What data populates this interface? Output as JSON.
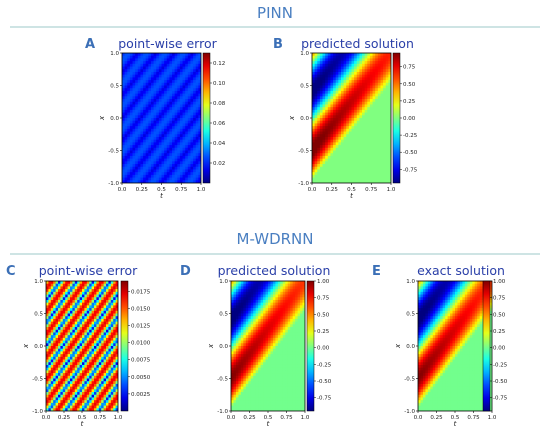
{
  "sections": [
    {
      "title": "PINN",
      "color": "#4a7fc1"
    },
    {
      "title": "M-WDRNN",
      "color": "#4a7fc1"
    }
  ],
  "colors": {
    "header": "#4a7fc1",
    "rule": "#9cc9c9",
    "letter": "#3b6fb6",
    "title": "#2a3fa8"
  },
  "chart_data": [
    {
      "type": "heatmap",
      "letter": "A",
      "title": "point-wise error",
      "xlabel": "t",
      "ylabel": "x",
      "xlim": [
        0,
        1
      ],
      "ylim": [
        -1,
        1
      ],
      "xticks": [
        "0.0",
        "0.25",
        "0.5",
        "0.75",
        "1.0"
      ],
      "yticks": [
        "1.0",
        "0.5",
        "0.0",
        "-0.5",
        "-1.0"
      ],
      "field": "error",
      "clim": [
        0,
        0.13
      ],
      "cbticks": [
        "0.12",
        "0.10",
        "0.08",
        "0.06",
        "0.04",
        "0.02"
      ]
    },
    {
      "type": "heatmap",
      "letter": "B",
      "title": "predicted solution",
      "xlabel": "t",
      "ylabel": "x",
      "xlim": [
        0,
        1
      ],
      "ylim": [
        -1,
        1
      ],
      "xticks": [
        "0.0",
        "0.25",
        "0.5",
        "0.75",
        "1.0"
      ],
      "yticks": [
        "1.0",
        "0.5",
        "0.0",
        "-0.5",
        "-1.0"
      ],
      "field": "solution",
      "clim": [
        -0.95,
        0.95
      ],
      "cbticks": [
        "0.75",
        "0.50",
        "0.25",
        "0.00",
        "-0.25",
        "-0.50",
        "-0.75"
      ]
    },
    {
      "type": "heatmap",
      "letter": "C",
      "title": "point-wise error",
      "xlabel": "t",
      "ylabel": "x",
      "xlim": [
        0,
        1
      ],
      "ylim": [
        -1,
        1
      ],
      "xticks": [
        "0.0",
        "0.25",
        "0.5",
        "0.75",
        "1.0"
      ],
      "yticks": [
        "1.0",
        "0.5",
        "0.0",
        "-0.5",
        "-1.0"
      ],
      "field": "error",
      "clim": [
        0,
        0.019
      ],
      "cbticks": [
        "0.0175",
        "0.0150",
        "0.0125",
        "0.0100",
        "0.0075",
        "0.0050",
        "0.0025"
      ]
    },
    {
      "type": "heatmap",
      "letter": "D",
      "title": "predicted solution",
      "xlabel": "t",
      "ylabel": "x",
      "xlim": [
        0,
        1
      ],
      "ylim": [
        -1,
        1
      ],
      "xticks": [
        "0.0",
        "0.25",
        "0.5",
        "0.75",
        "1.0"
      ],
      "yticks": [
        "1.0",
        "0.5",
        "0.0",
        "-0.5",
        "-1.0"
      ],
      "field": "solution",
      "clim": [
        -0.95,
        1.0
      ],
      "cbticks": [
        "1.00",
        "0.75",
        "0.50",
        "0.25",
        "0.00",
        "-0.25",
        "-0.50",
        "-0.75"
      ]
    },
    {
      "type": "heatmap",
      "letter": "E",
      "title": "exact solution",
      "xlabel": "t",
      "ylabel": "x",
      "xlim": [
        0,
        1
      ],
      "ylim": [
        -1,
        1
      ],
      "xticks": [
        "0.0",
        "0.25",
        "0.5",
        "0.75",
        "1.0"
      ],
      "yticks": [
        "1.0",
        "0.5",
        "0.0",
        "-0.5",
        "-1.0"
      ],
      "field": "solution",
      "clim": [
        -0.95,
        1.0
      ],
      "cbticks": [
        "1.00",
        "0.75",
        "0.50",
        "0.25",
        "0.00",
        "-0.25",
        "-0.50",
        "-0.75"
      ]
    }
  ]
}
